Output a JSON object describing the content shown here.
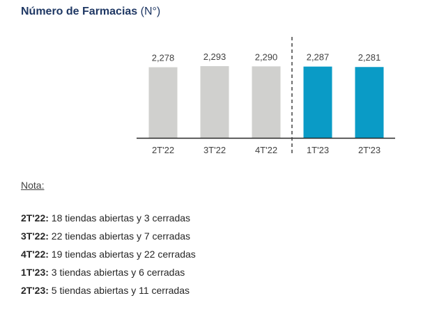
{
  "title": {
    "main": "Número de Farmacias",
    "unit": "(N°)"
  },
  "colors": {
    "past": "#d0d0ce",
    "current": "#0a9bc6",
    "axis": "#262626",
    "divider": "#404040",
    "title": "#1f3864"
  },
  "chart_data": {
    "type": "bar",
    "title": "Número de Farmacias (N°)",
    "categories": [
      "2T'22",
      "3T'22",
      "4T'22",
      "1T'23",
      "2T'23"
    ],
    "values": [
      2278,
      2293,
      2290,
      2287,
      2281
    ],
    "value_labels": [
      "2,278",
      "2,293",
      "2,290",
      "2,287",
      "2,281"
    ],
    "series": [
      {
        "values": [
          2278,
          2293,
          2290,
          2287,
          2281
        ]
      }
    ],
    "bar_color_groups": [
      "past",
      "past",
      "past",
      "current",
      "current"
    ],
    "divider_after_category": "4T'22",
    "xlabel": "",
    "ylabel": "",
    "grid": false,
    "legend": "none"
  },
  "note": {
    "heading": "Nota:",
    "items": [
      {
        "label": "2T'22:",
        "text": " 18 tiendas abiertas y 3 cerradas"
      },
      {
        "label": "3T'22:",
        "text": " 22 tiendas abiertas y 7 cerradas"
      },
      {
        "label": "4T'22:",
        "text": " 19 tiendas abiertas y 22 cerradas"
      },
      {
        "label": "1T'23:",
        "text": " 3 tiendas abiertas y 6 cerradas"
      },
      {
        "label": "2T'23:",
        "text": " 5 tiendas abiertas y 11 cerradas"
      }
    ]
  }
}
